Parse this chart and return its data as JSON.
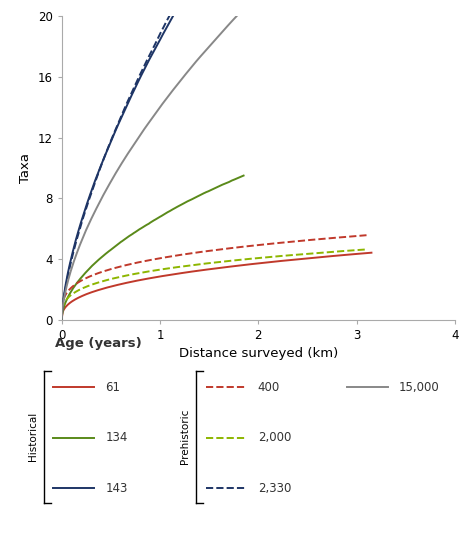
{
  "xlabel": "Distance surveyed (km)",
  "ylabel": "Taxa",
  "xlim": [
    0,
    4
  ],
  "ylim": [
    0,
    20
  ],
  "xticks": [
    0,
    1,
    2,
    3,
    4
  ],
  "yticks": [
    0,
    4,
    8,
    12,
    16,
    20
  ],
  "legend_title": "Age (years)",
  "curves": [
    {
      "label": "61",
      "group": "Historical",
      "color": "#c0392b",
      "ls": "solid",
      "x_max": 3.15,
      "a": 2.85,
      "b": 0.38,
      "noise_seed": 1,
      "noise_amp": 0.05
    },
    {
      "label": "134",
      "group": "Historical",
      "color": "#5a8a1a",
      "ls": "solid",
      "x_max": 1.85,
      "a": 6.8,
      "b": 0.55,
      "noise_seed": 2,
      "noise_amp": 0.12
    },
    {
      "label": "143",
      "group": "Historical",
      "color": "#1e3566",
      "ls": "solid",
      "x_max": 3.1,
      "a": 18.5,
      "b": 0.65,
      "noise_seed": 3,
      "noise_amp": 0.08
    },
    {
      "label": "400",
      "group": "Prehistoric",
      "color": "#c0392b",
      "ls": "dashed",
      "x_max": 3.1,
      "a": 4.05,
      "b": 0.28,
      "noise_seed": 4,
      "noise_amp": 0.03
    },
    {
      "label": "2,000",
      "group": "Prehistoric",
      "color": "#8db600",
      "ls": "dashed",
      "x_max": 3.1,
      "a": 3.3,
      "b": 0.3,
      "noise_seed": 5,
      "noise_amp": 0.03
    },
    {
      "label": "2,330",
      "group": "Prehistoric",
      "color": "#1e3566",
      "ls": "dashed",
      "x_max": 1.9,
      "a": 18.8,
      "b": 0.68,
      "noise_seed": 6,
      "noise_amp": 0.07
    },
    {
      "label": "15,000",
      "group": "Prehistoric",
      "color": "#888888",
      "ls": "solid",
      "x_max": 3.1,
      "a": 14.0,
      "b": 0.62,
      "noise_seed": 7,
      "noise_amp": 0.06
    }
  ],
  "background_color": "#ffffff",
  "figsize": [
    4.74,
    5.33
  ],
  "dpi": 100
}
